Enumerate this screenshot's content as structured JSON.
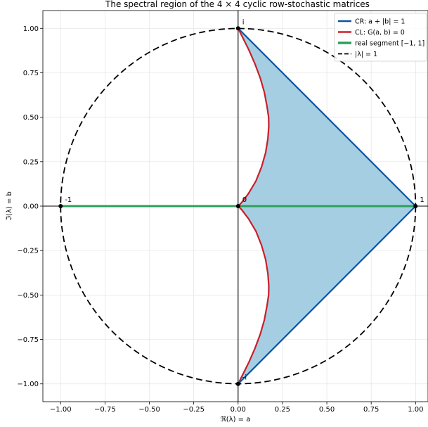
{
  "chart_data": {
    "type": "line",
    "title": "The spectral region of the 4 × 4 cyclic row-stochastic matrices",
    "xlabel": "ℜ(λ) = a",
    "ylabel": "ℑ(λ) = b",
    "xlim": [
      -1.1,
      1.07
    ],
    "ylim": [
      -1.1,
      1.1
    ],
    "x_ticks": [
      -1.0,
      -0.75,
      -0.5,
      -0.25,
      0.0,
      0.25,
      0.5,
      0.75,
      1.0
    ],
    "y_ticks": [
      -1.0,
      -0.75,
      -0.5,
      -0.25,
      0.0,
      0.25,
      0.5,
      0.75,
      1.0
    ],
    "x_tick_labels": [
      "−1.00",
      "−0.75",
      "−0.50",
      "−0.25",
      "0.00",
      "0.25",
      "0.50",
      "0.75",
      "1.00"
    ],
    "y_tick_labels": [
      "−1.00",
      "−0.75",
      "−0.50",
      "−0.25",
      "0.00",
      "0.25",
      "0.50",
      "0.75",
      "1.00"
    ],
    "grid": true,
    "legend_position": "top-right",
    "series": [
      {
        "name": "CR: a + |b| = 1",
        "color": "#0b55a3",
        "style": "solid",
        "points": [
          [
            0,
            1
          ],
          [
            1,
            0
          ],
          [
            0,
            -1
          ]
        ]
      },
      {
        "name": "CL: G(a, b) = 0",
        "color": "#c8202a",
        "style": "solid",
        "points": [
          [
            0,
            1
          ],
          [
            0.025,
            0.95
          ],
          [
            0.06,
            0.88
          ],
          [
            0.095,
            0.8
          ],
          [
            0.125,
            0.72
          ],
          [
            0.148,
            0.64
          ],
          [
            0.163,
            0.56
          ],
          [
            0.172,
            0.5
          ],
          [
            0.173,
            0.45
          ],
          [
            0.168,
            0.38
          ],
          [
            0.155,
            0.3
          ],
          [
            0.132,
            0.22
          ],
          [
            0.1,
            0.14
          ],
          [
            0.058,
            0.07
          ],
          [
            0.02,
            0.02
          ],
          [
            0,
            0
          ],
          [
            0.02,
            -0.02
          ],
          [
            0.058,
            -0.07
          ],
          [
            0.1,
            -0.14
          ],
          [
            0.132,
            -0.22
          ],
          [
            0.155,
            -0.3
          ],
          [
            0.168,
            -0.38
          ],
          [
            0.173,
            -0.45
          ],
          [
            0.172,
            -0.5
          ],
          [
            0.163,
            -0.56
          ],
          [
            0.148,
            -0.64
          ],
          [
            0.125,
            -0.72
          ],
          [
            0.095,
            -0.8
          ],
          [
            0.06,
            -0.88
          ],
          [
            0.025,
            -0.95
          ],
          [
            0,
            -1
          ]
        ]
      },
      {
        "name": "real segment [−1, 1]",
        "color": "#2ca05a",
        "style": "solid",
        "points": [
          [
            -1,
            0
          ],
          [
            1,
            0
          ]
        ]
      },
      {
        "name": "|λ| = 1",
        "color": "#000000",
        "style": "dashed"
      }
    ],
    "region_fill_color": "#a6cee3",
    "key_points": [
      {
        "x": 0,
        "y": 1,
        "label": "i"
      },
      {
        "x": 0,
        "y": -1,
        "label": "-i"
      },
      {
        "x": 0,
        "y": 0,
        "label": "0"
      },
      {
        "x": -1,
        "y": 0,
        "label": "-1"
      },
      {
        "x": 1,
        "y": 0,
        "label": "1"
      }
    ]
  }
}
